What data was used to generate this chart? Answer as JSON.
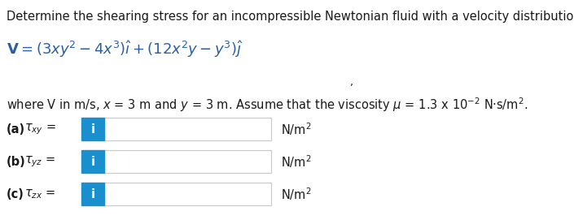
{
  "bg_color": "#ffffff",
  "title_text": "Determine the shearing stress for an incompressible Newtonian fluid with a velocity distribution of",
  "title_fontsize": 10.5,
  "title_color": "#1a1a1a",
  "formula_color": "#2a5fa5",
  "box_color": "#1a8fcd",
  "box_text": "i",
  "input_box_border": "#c8c8c8",
  "rows": [
    {
      "label_bold": "(a)",
      "tau": "τ",
      "sub": "xy"
    },
    {
      "label_bold": "(b)",
      "tau": "τ",
      "sub": "yz"
    },
    {
      "label_bold": "(c)",
      "tau": "τ",
      "sub": "zx"
    }
  ],
  "unit": "N/m²"
}
